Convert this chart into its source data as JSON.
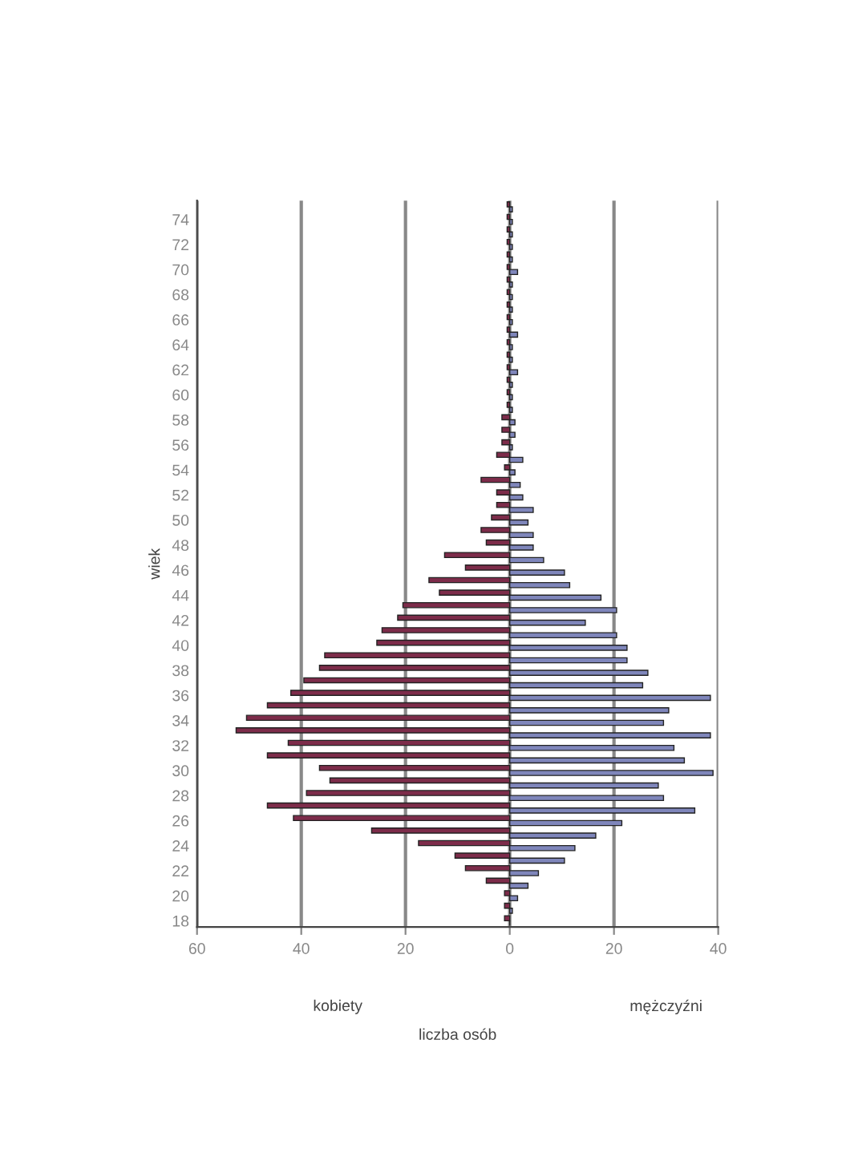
{
  "chart_data": {
    "type": "bar",
    "orientation": "horizontal",
    "ylabel": "wiek",
    "xlabel": "liczba osób",
    "annotations": [
      "kobiety",
      "mężczyźni"
    ],
    "categories": [
      null,
      "74",
      null,
      "72",
      null,
      "70",
      null,
      "68",
      null,
      "66",
      null,
      "64",
      null,
      "62",
      null,
      "60",
      null,
      "58",
      null,
      "56",
      null,
      "54",
      null,
      "52",
      null,
      "50",
      null,
      "48",
      null,
      "46",
      null,
      "44",
      null,
      "42",
      null,
      "40",
      null,
      "38",
      null,
      "36",
      null,
      "34",
      null,
      "32",
      null,
      "30",
      null,
      "28",
      null,
      "26",
      null,
      "24",
      null,
      "22",
      null,
      "20",
      null,
      "18"
    ],
    "series": [
      {
        "color": "#7d2c4a",
        "values": [
          -0.5,
          -0.5,
          -0.5,
          -0.5,
          -0.5,
          -0.5,
          -0.5,
          -0.5,
          -0.5,
          -0.5,
          -0.5,
          -0.5,
          -0.5,
          -0.5,
          -0.5,
          -0.5,
          -0.5,
          -1.5,
          -1.5,
          -1.5,
          -2.5,
          -1,
          -5.5,
          -2.5,
          -2.5,
          -3.5,
          -5.5,
          -4.5,
          -12.5,
          -8.5,
          -15.5,
          -13.5,
          -20.5,
          -21.5,
          -24.5,
          -25.5,
          -35.5,
          -36.5,
          -39.5,
          -42,
          -46.5,
          -50.5,
          -52.5,
          -42.5,
          -46.5,
          -36.5,
          -34.5,
          -39,
          -46.5,
          -41.5,
          -26.5,
          -17.5,
          -10.5,
          -8.5,
          -4.5,
          -1,
          -1,
          -1
        ]
      },
      {
        "color": "#7f86bb",
        "values": [
          0.5,
          0.5,
          0.5,
          0.5,
          0.5,
          1.5,
          0.5,
          0.5,
          0.5,
          0.5,
          1.5,
          0.5,
          0.5,
          1.5,
          0.5,
          0.5,
          0.5,
          1,
          1,
          0.5,
          2.5,
          1,
          2,
          2.5,
          4.5,
          3.5,
          4.5,
          4.5,
          6.5,
          10.5,
          11.5,
          17.5,
          20.5,
          14.5,
          20.5,
          22.5,
          22.5,
          26.5,
          25.5,
          38.5,
          30.5,
          29.5,
          38.5,
          31.5,
          33.5,
          39,
          28.5,
          29.5,
          35.5,
          21.5,
          16.5,
          12.5,
          10.5,
          5.5,
          3.5,
          1.5,
          0.5,
          0
        ]
      }
    ],
    "xlim": [
      -60,
      40
    ],
    "xticks": [
      {
        "value": -60,
        "label": "60"
      },
      {
        "value": -40,
        "label": "40"
      },
      {
        "value": -20,
        "label": "20"
      },
      0,
      20,
      40
    ],
    "grid": "x",
    "legend": false
  }
}
